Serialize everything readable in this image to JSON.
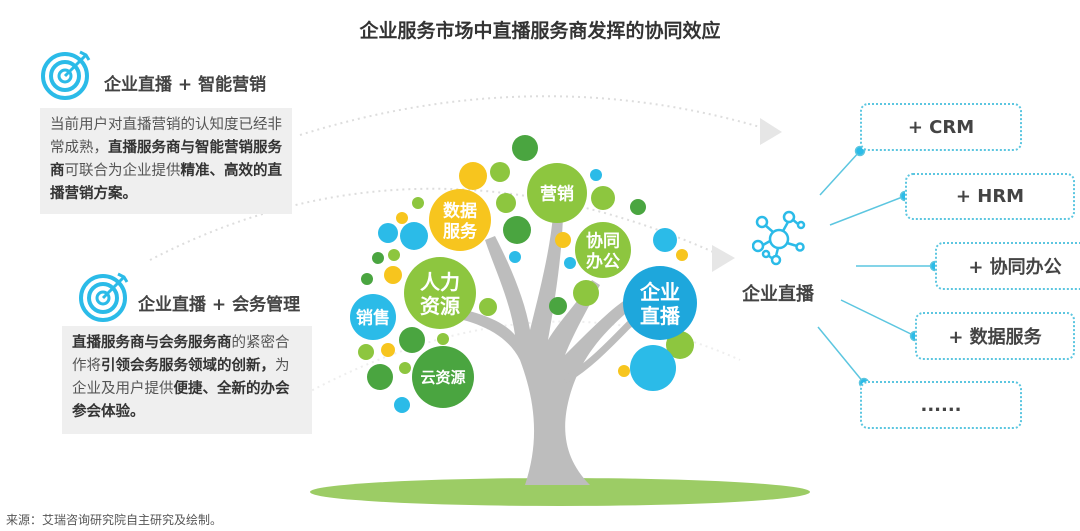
{
  "title": "企业服务市场中直播服务商发挥的协同效应",
  "left_blocks": [
    {
      "heading": "企业直播 + 智能营销",
      "segments": [
        {
          "text": "当前用户对直播营销的认知度已经非常成熟，",
          "bold": false
        },
        {
          "text": "直播服务商与智能营销服务商",
          "bold": true
        },
        {
          "text": "可联合为企业提供",
          "bold": false
        },
        {
          "text": "精准、高效的直播营销方案。",
          "bold": true
        }
      ]
    },
    {
      "heading": "企业直播 + 会务管理",
      "segments": [
        {
          "text": "直播服务商与会务服务商",
          "bold": true
        },
        {
          "text": "的紧密合作将",
          "bold": false
        },
        {
          "text": "引领会务服务领域的创新，",
          "bold": true
        },
        {
          "text": "为企业及用户提供",
          "bold": false
        },
        {
          "text": "便捷、全新的办会参会体验。",
          "bold": true
        }
      ]
    }
  ],
  "tree": {
    "bubbles": [
      {
        "line1": "营销",
        "line2": "",
        "color": "#8dc63f"
      },
      {
        "line1": "数据",
        "line2": "服务",
        "color": "#f7c51e"
      },
      {
        "line1": "协同",
        "line2": "办公",
        "color": "#8dc63f"
      },
      {
        "line1": "人力",
        "line2": "资源",
        "color": "#8dc63f"
      },
      {
        "line1": "企业",
        "line2": "直播",
        "color": "#1ea7dc"
      },
      {
        "line1": "销售",
        "line2": "",
        "color": "#2bbbe8"
      },
      {
        "line1": "云资源",
        "line2": "",
        "color": "#4aa540"
      }
    ]
  },
  "hub": {
    "label": "企业直播",
    "icon": "network-icon"
  },
  "right_items": [
    "+ CRM",
    "+ HRM",
    "+ 协同办公",
    "+ 数据服务",
    "......"
  ],
  "colors": {
    "accent": "#2bbbe8",
    "green": "#8dc63f",
    "dark_green": "#4aa540",
    "yellow": "#f7c51e",
    "trunk": "#bdbdbd"
  },
  "footer": "来源：艾瑞咨询研究院自主研究及绘制。"
}
